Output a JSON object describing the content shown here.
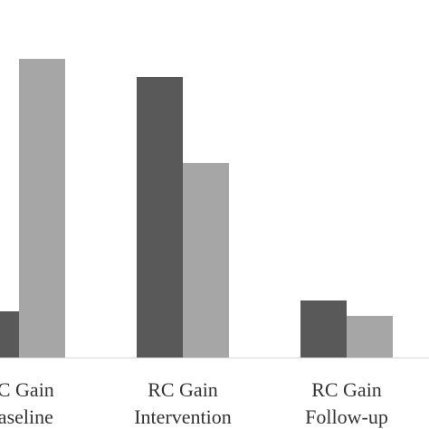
{
  "chart_data": {
    "type": "bar",
    "categories": [
      [
        "RC Gain",
        "Baseline"
      ],
      [
        "RC Gain",
        "Intervention"
      ],
      [
        "RC Gain",
        "Follow-up"
      ]
    ],
    "series": [
      {
        "color": "#595959",
        "values": [
          51,
          310,
          63
        ]
      },
      {
        "color": "#a6a6a6",
        "values": [
          330,
          215,
          46
        ]
      }
    ],
    "ylim": [
      0,
      350
    ]
  }
}
